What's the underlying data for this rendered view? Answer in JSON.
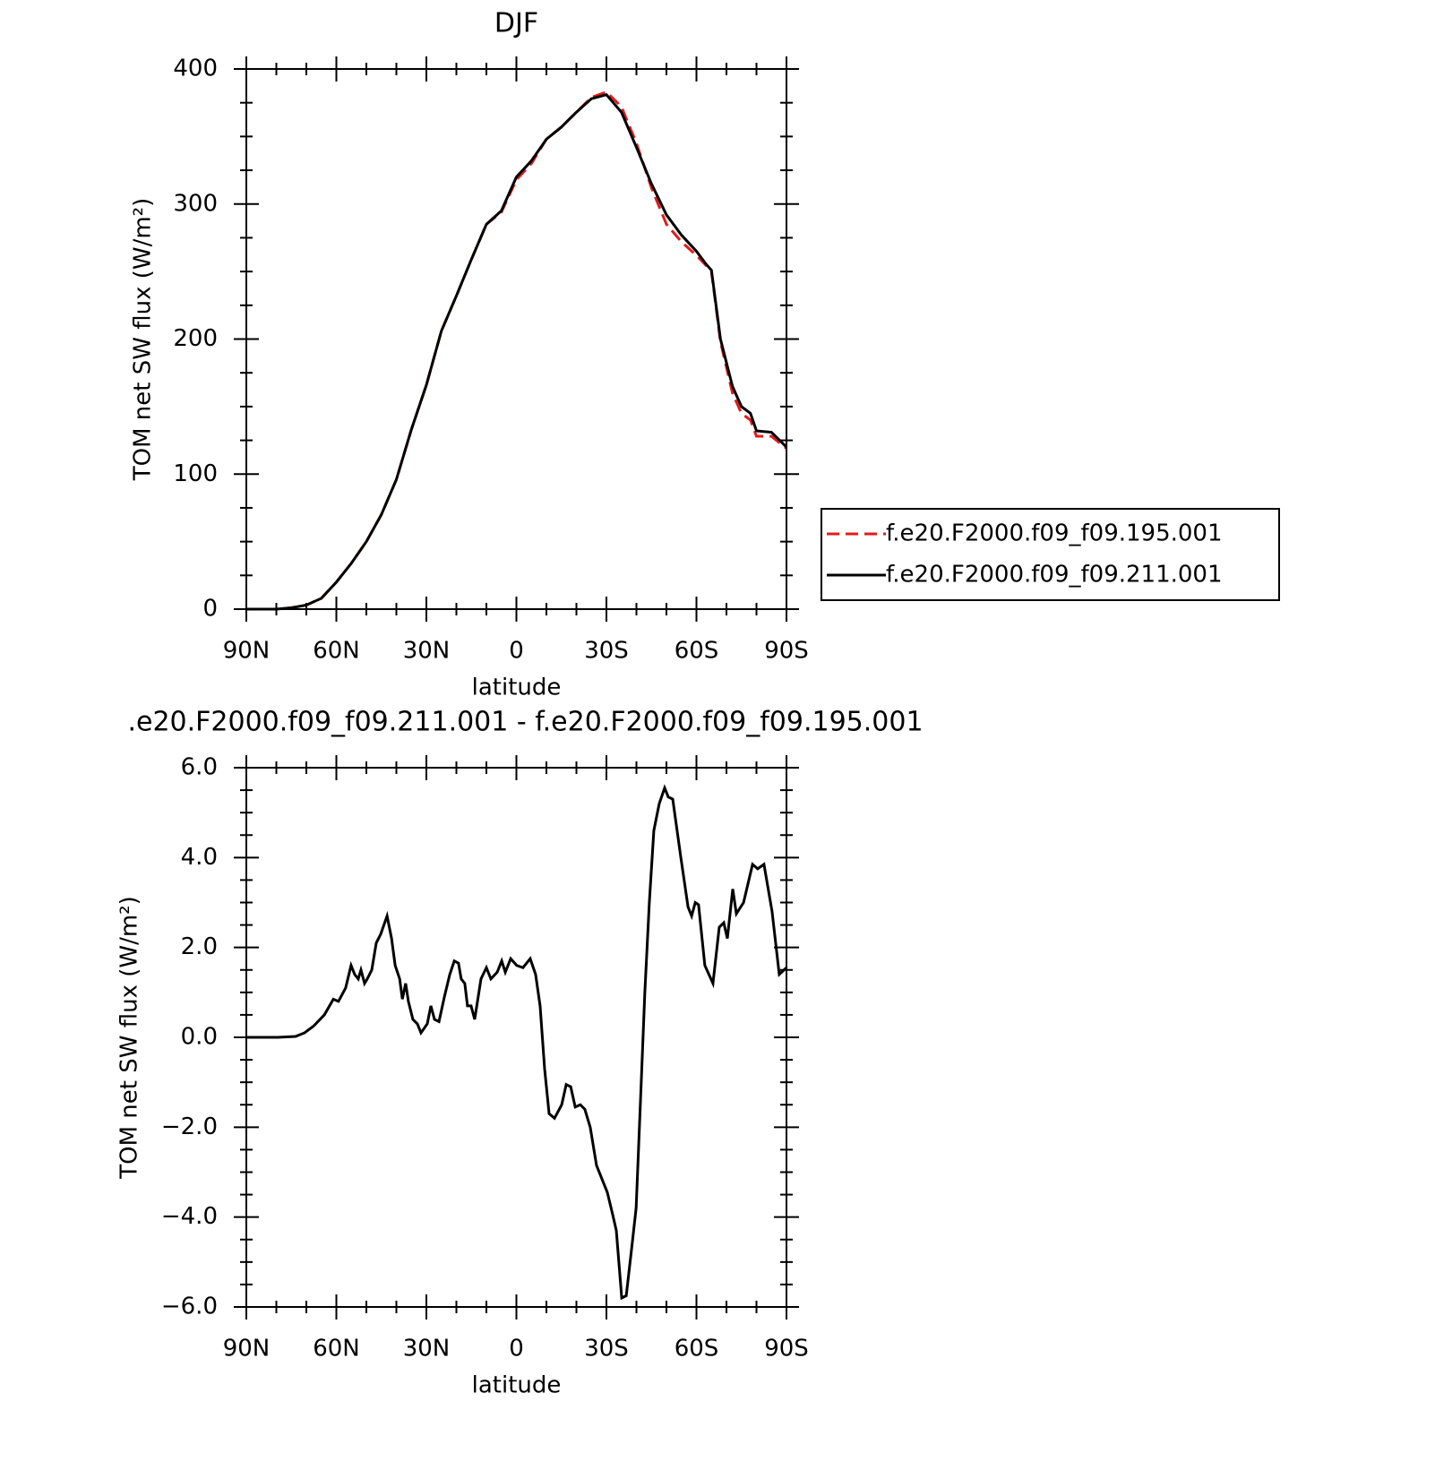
{
  "chart_data": [
    {
      "type": "line",
      "title": "DJF",
      "xlabel": "latitude",
      "ylabel": "TOM net SW flux (W/m²)",
      "x": [
        90,
        85,
        80,
        75,
        70,
        65,
        60,
        55,
        50,
        45,
        40,
        35,
        30,
        25,
        20,
        15,
        10,
        5,
        0,
        -5,
        -10,
        -15,
        -20,
        -25,
        -30,
        -35,
        -40,
        -45,
        -50,
        -55,
        -60,
        -63,
        -65,
        -68,
        -72,
        -75,
        -78,
        -80,
        -85,
        -90
      ],
      "series": [
        {
          "name": "f.e20.F2000.f09_f09.195.001",
          "color": "#e41a1c",
          "line_style": "dashed",
          "values": [
            0,
            0,
            0,
            1,
            3,
            8,
            20,
            34,
            50,
            70,
            96,
            133,
            166,
            206,
            232,
            259,
            285,
            294,
            318,
            330,
            348,
            357,
            368,
            379,
            383,
            372,
            345,
            312,
            285,
            272,
            262,
            255,
            250,
            198,
            160,
            145,
            140,
            128,
            128,
            119
          ]
        },
        {
          "name": "f.e20.F2000.f09_f09.211.001",
          "color": "#000000",
          "line_style": "solid",
          "values": [
            0,
            0,
            0,
            1,
            3,
            8,
            20,
            34,
            50,
            70,
            96,
            133,
            166,
            206,
            232,
            259,
            285,
            295,
            320,
            332,
            348,
            357,
            368,
            378,
            381,
            368,
            342,
            315,
            292,
            277,
            265,
            256,
            251,
            200,
            165,
            150,
            145,
            132,
            131,
            120
          ]
        }
      ],
      "xlim": [
        90,
        -90
      ],
      "xticks": [
        {
          "value": 90,
          "label": "90N"
        },
        {
          "value": 60,
          "label": "60N"
        },
        {
          "value": 30,
          "label": "30N"
        },
        0,
        {
          "value": -30,
          "label": "30S"
        },
        {
          "value": -60,
          "label": "60S"
        },
        {
          "value": -90,
          "label": "90S"
        }
      ],
      "ylim": [
        0,
        400
      ],
      "yticks": [
        0,
        100,
        200,
        300,
        400
      ],
      "minor_ticks": {
        "x": 2,
        "y": 3
      },
      "legend": "right"
    },
    {
      "type": "line",
      "title": ".e20.F2000.f09_f09.211.001 - f.e20.F2000.f09_f09.195.001",
      "xlabel": "latitude",
      "ylabel": "TOM net SW flux (W/m²)",
      "x": [
        90,
        79.5,
        73.6,
        70.6,
        67.6,
        64,
        61,
        59.3,
        56.9,
        55.1,
        53.9,
        52.7,
        51.8,
        50.6,
        49.7,
        48.2,
        46.7,
        45.2,
        43.1,
        41.6,
        40.4,
        38.9,
        38,
        36.9,
        36,
        34.5,
        33,
        31.8,
        29.7,
        28.5,
        27.3,
        25.8,
        24,
        22.2,
        20.7,
        19.3,
        18.4,
        17.2,
        16.3,
        15.1,
        13.9,
        11.8,
        10,
        8.5,
        6.4,
        4.9,
        3.7,
        1.9,
        -0.1,
        -2.2,
        -4.6,
        -6.4,
        -7.9,
        -9.4,
        -10.9,
        -12.7,
        -15.1,
        -16.6,
        -18.1,
        -19.6,
        -21.3,
        -22.8,
        -24.6,
        -26.7,
        -28.5,
        -30.3,
        -32.1,
        -33.3,
        -35.1,
        -36.6,
        -38.4,
        -39.9,
        -41.6,
        -42.8,
        -44.3,
        -45.8,
        -47.6,
        -49.4,
        -50.6,
        -52.1,
        -54.8,
        -57.2,
        -58.4,
        -59.6,
        -60.7,
        -62.8,
        -65.5,
        -67.6,
        -69.1,
        -70.3,
        -72.1,
        -73.3,
        -75.7,
        -78.7,
        -80.4,
        -82.5,
        -85.2,
        -87.6,
        -90
      ],
      "series": [
        {
          "color": "#000000",
          "line_style": "solid",
          "values": [
            0,
            0,
            0.02,
            0.1,
            0.25,
            0.5,
            0.85,
            0.8,
            1.1,
            1.6,
            1.4,
            1.3,
            1.5,
            1.2,
            1.3,
            1.5,
            2.1,
            2.3,
            2.7,
            2.2,
            1.6,
            1.3,
            0.85,
            1.2,
            0.8,
            0.4,
            0.3,
            0.1,
            0.3,
            0.7,
            0.4,
            0.35,
            0.9,
            1.4,
            1.7,
            1.65,
            1.3,
            1.2,
            0.7,
            0.7,
            0.4,
            1.3,
            1.55,
            1.3,
            1.45,
            1.7,
            1.45,
            1.75,
            1.6,
            1.55,
            1.75,
            1.4,
            0.7,
            -0.7,
            -1.7,
            -1.8,
            -1.5,
            -1.05,
            -1.1,
            -1.55,
            -1.5,
            -1.6,
            -2.0,
            -2.85,
            -3.15,
            -3.45,
            -3.95,
            -4.3,
            -5.8,
            -5.75,
            -4.7,
            -3.8,
            -1.0,
            1.0,
            3.0,
            4.6,
            5.2,
            5.55,
            5.35,
            5.3,
            4.0,
            2.9,
            2.7,
            3.0,
            2.95,
            1.6,
            1.2,
            2.45,
            2.55,
            2.2,
            3.3,
            2.75,
            3.0,
            3.85,
            3.75,
            3.85,
            2.8,
            1.4,
            1.55
          ]
        }
      ],
      "xlim": [
        90,
        -90
      ],
      "xticks": [
        {
          "value": 90,
          "label": "90N"
        },
        {
          "value": 60,
          "label": "60N"
        },
        {
          "value": 30,
          "label": "30N"
        },
        0,
        {
          "value": -30,
          "label": "30S"
        },
        {
          "value": -60,
          "label": "60S"
        },
        {
          "value": -90,
          "label": "90S"
        }
      ],
      "ylim": [
        -6,
        6
      ],
      "yticks": [
        {
          "value": -6,
          "label": "−6.0"
        },
        {
          "value": -4,
          "label": "−4.0"
        },
        {
          "value": -2,
          "label": "−2.0"
        },
        {
          "value": 0,
          "label": "0.0"
        },
        {
          "value": 2,
          "label": "2.0"
        },
        {
          "value": 4,
          "label": "4.0"
        },
        {
          "value": 6,
          "label": "6.0"
        }
      ],
      "minor_ticks": {
        "x": 2,
        "y": 3
      }
    }
  ]
}
